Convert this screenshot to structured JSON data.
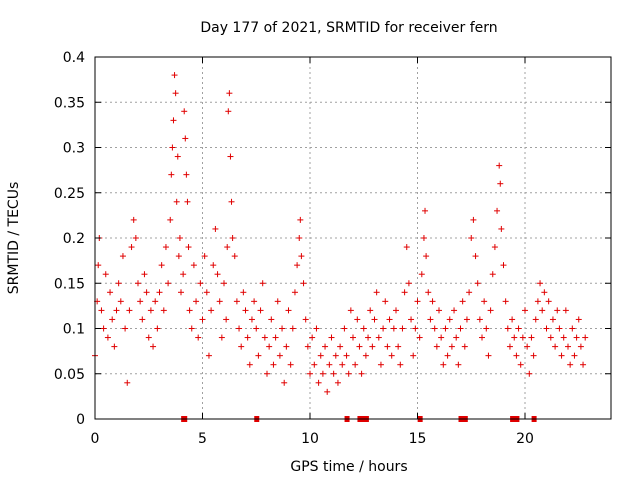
{
  "chart_data": {
    "type": "scatter",
    "title": "Day 177 of 2021, SRMTID for receiver fern",
    "xlabel": "GPS time / hours",
    "ylabel": "SRMTID / TECUs",
    "xlim": [
      0,
      24
    ],
    "ylim": [
      0,
      0.4
    ],
    "grid": true,
    "x_ticks": [
      0,
      5,
      10,
      15,
      20
    ],
    "x_tick_labels": [
      "0",
      "5",
      "10",
      "15",
      "20"
    ],
    "y_ticks": [
      0,
      0.05,
      0.1,
      0.15,
      0.2,
      0.25,
      0.3,
      0.35,
      0.4
    ],
    "y_tick_labels": [
      "0",
      "0.05",
      "0.1",
      "0.15",
      "0.2",
      "0.25",
      "0.3",
      "0.35",
      "0.4"
    ],
    "marker": "+",
    "color": "#e00000",
    "series": [
      {
        "name": "SRMTID",
        "points": [
          [
            0.0,
            0.07
          ],
          [
            0.1,
            0.13
          ],
          [
            0.15,
            0.17
          ],
          [
            0.2,
            0.2
          ],
          [
            0.3,
            0.12
          ],
          [
            0.4,
            0.1
          ],
          [
            0.5,
            0.16
          ],
          [
            0.6,
            0.09
          ],
          [
            0.7,
            0.14
          ],
          [
            0.8,
            0.11
          ],
          [
            0.9,
            0.08
          ],
          [
            1.0,
            0.12
          ],
          [
            1.1,
            0.15
          ],
          [
            1.2,
            0.13
          ],
          [
            1.3,
            0.18
          ],
          [
            1.4,
            0.1
          ],
          [
            1.5,
            0.04
          ],
          [
            1.6,
            0.12
          ],
          [
            1.7,
            0.19
          ],
          [
            1.8,
            0.22
          ],
          [
            1.9,
            0.2
          ],
          [
            2.0,
            0.15
          ],
          [
            2.1,
            0.13
          ],
          [
            2.2,
            0.11
          ],
          [
            2.3,
            0.16
          ],
          [
            2.4,
            0.14
          ],
          [
            2.5,
            0.09
          ],
          [
            2.6,
            0.12
          ],
          [
            2.7,
            0.08
          ],
          [
            2.8,
            0.13
          ],
          [
            2.9,
            0.1
          ],
          [
            3.0,
            0.14
          ],
          [
            3.1,
            0.17
          ],
          [
            3.2,
            0.12
          ],
          [
            3.3,
            0.19
          ],
          [
            3.4,
            0.15
          ],
          [
            3.5,
            0.22
          ],
          [
            3.55,
            0.27
          ],
          [
            3.6,
            0.3
          ],
          [
            3.65,
            0.33
          ],
          [
            3.7,
            0.38
          ],
          [
            3.75,
            0.36
          ],
          [
            3.8,
            0.24
          ],
          [
            3.85,
            0.29
          ],
          [
            3.9,
            0.18
          ],
          [
            3.95,
            0.2
          ],
          [
            4.0,
            0.14
          ],
          [
            4.1,
            0.16
          ],
          [
            4.15,
            0.34
          ],
          [
            4.2,
            0.31
          ],
          [
            4.25,
            0.27
          ],
          [
            4.3,
            0.24
          ],
          [
            4.35,
            0.19
          ],
          [
            4.4,
            0.12
          ],
          [
            4.5,
            0.1
          ],
          [
            4.6,
            0.17
          ],
          [
            4.7,
            0.13
          ],
          [
            4.8,
            0.09
          ],
          [
            4.9,
            0.15
          ],
          [
            5.0,
            0.11
          ],
          [
            5.1,
            0.18
          ],
          [
            5.2,
            0.14
          ],
          [
            5.3,
            0.07
          ],
          [
            5.4,
            0.12
          ],
          [
            5.5,
            0.17
          ],
          [
            5.6,
            0.21
          ],
          [
            5.7,
            0.16
          ],
          [
            5.8,
            0.13
          ],
          [
            5.9,
            0.09
          ],
          [
            6.0,
            0.15
          ],
          [
            6.1,
            0.11
          ],
          [
            6.15,
            0.19
          ],
          [
            6.2,
            0.34
          ],
          [
            6.25,
            0.36
          ],
          [
            6.3,
            0.29
          ],
          [
            6.35,
            0.24
          ],
          [
            6.4,
            0.2
          ],
          [
            6.5,
            0.18
          ],
          [
            6.6,
            0.13
          ],
          [
            6.7,
            0.1
          ],
          [
            6.8,
            0.08
          ],
          [
            6.9,
            0.14
          ],
          [
            7.0,
            0.12
          ],
          [
            7.1,
            0.09
          ],
          [
            7.2,
            0.06
          ],
          [
            7.3,
            0.11
          ],
          [
            7.4,
            0.13
          ],
          [
            7.5,
            0.1
          ],
          [
            7.6,
            0.07
          ],
          [
            7.7,
            0.12
          ],
          [
            7.8,
            0.15
          ],
          [
            7.9,
            0.09
          ],
          [
            8.0,
            0.05
          ],
          [
            8.1,
            0.08
          ],
          [
            8.2,
            0.11
          ],
          [
            8.3,
            0.06
          ],
          [
            8.4,
            0.09
          ],
          [
            8.5,
            0.13
          ],
          [
            8.6,
            0.07
          ],
          [
            8.7,
            0.1
          ],
          [
            8.8,
            0.04
          ],
          [
            8.9,
            0.08
          ],
          [
            9.0,
            0.12
          ],
          [
            9.1,
            0.06
          ],
          [
            9.2,
            0.1
          ],
          [
            9.3,
            0.14
          ],
          [
            9.4,
            0.17
          ],
          [
            9.5,
            0.2
          ],
          [
            9.55,
            0.22
          ],
          [
            9.6,
            0.18
          ],
          [
            9.7,
            0.15
          ],
          [
            9.8,
            0.11
          ],
          [
            9.9,
            0.08
          ],
          [
            10.0,
            0.05
          ],
          [
            10.1,
            0.09
          ],
          [
            10.2,
            0.06
          ],
          [
            10.3,
            0.1
          ],
          [
            10.4,
            0.04
          ],
          [
            10.5,
            0.07
          ],
          [
            10.6,
            0.05
          ],
          [
            10.7,
            0.08
          ],
          [
            10.8,
            0.03
          ],
          [
            10.9,
            0.06
          ],
          [
            11.0,
            0.09
          ],
          [
            11.1,
            0.05
          ],
          [
            11.2,
            0.07
          ],
          [
            11.3,
            0.04
          ],
          [
            11.4,
            0.08
          ],
          [
            11.5,
            0.06
          ],
          [
            11.6,
            0.1
          ],
          [
            11.7,
            0.07
          ],
          [
            11.8,
            0.05
          ],
          [
            11.9,
            0.12
          ],
          [
            12.0,
            0.09
          ],
          [
            12.1,
            0.06
          ],
          [
            12.2,
            0.11
          ],
          [
            12.3,
            0.08
          ],
          [
            12.4,
            0.05
          ],
          [
            12.5,
            0.1
          ],
          [
            12.6,
            0.07
          ],
          [
            12.7,
            0.09
          ],
          [
            12.8,
            0.12
          ],
          [
            12.9,
            0.08
          ],
          [
            13.0,
            0.11
          ],
          [
            13.1,
            0.14
          ],
          [
            13.2,
            0.09
          ],
          [
            13.3,
            0.06
          ],
          [
            13.4,
            0.1
          ],
          [
            13.5,
            0.13
          ],
          [
            13.6,
            0.08
          ],
          [
            13.7,
            0.11
          ],
          [
            13.8,
            0.07
          ],
          [
            13.9,
            0.1
          ],
          [
            14.0,
            0.12
          ],
          [
            14.1,
            0.08
          ],
          [
            14.2,
            0.06
          ],
          [
            14.3,
            0.1
          ],
          [
            14.4,
            0.14
          ],
          [
            14.5,
            0.19
          ],
          [
            14.6,
            0.15
          ],
          [
            14.7,
            0.11
          ],
          [
            14.8,
            0.07
          ],
          [
            14.9,
            0.1
          ],
          [
            15.0,
            0.13
          ],
          [
            15.1,
            0.09
          ],
          [
            15.2,
            0.16
          ],
          [
            15.3,
            0.2
          ],
          [
            15.35,
            0.23
          ],
          [
            15.4,
            0.18
          ],
          [
            15.5,
            0.14
          ],
          [
            15.6,
            0.11
          ],
          [
            15.7,
            0.13
          ],
          [
            15.8,
            0.1
          ],
          [
            15.9,
            0.08
          ],
          [
            16.0,
            0.12
          ],
          [
            16.1,
            0.09
          ],
          [
            16.2,
            0.06
          ],
          [
            16.3,
            0.1
          ],
          [
            16.4,
            0.07
          ],
          [
            16.5,
            0.11
          ],
          [
            16.6,
            0.08
          ],
          [
            16.7,
            0.12
          ],
          [
            16.8,
            0.09
          ],
          [
            16.9,
            0.06
          ],
          [
            17.0,
            0.1
          ],
          [
            17.1,
            0.13
          ],
          [
            17.2,
            0.08
          ],
          [
            17.3,
            0.11
          ],
          [
            17.4,
            0.14
          ],
          [
            17.5,
            0.2
          ],
          [
            17.6,
            0.22
          ],
          [
            17.7,
            0.18
          ],
          [
            17.8,
            0.15
          ],
          [
            17.9,
            0.11
          ],
          [
            18.0,
            0.09
          ],
          [
            18.1,
            0.13
          ],
          [
            18.2,
            0.1
          ],
          [
            18.3,
            0.07
          ],
          [
            18.4,
            0.12
          ],
          [
            18.5,
            0.16
          ],
          [
            18.6,
            0.19
          ],
          [
            18.7,
            0.23
          ],
          [
            18.8,
            0.28
          ],
          [
            18.85,
            0.26
          ],
          [
            18.9,
            0.21
          ],
          [
            19.0,
            0.17
          ],
          [
            19.1,
            0.13
          ],
          [
            19.2,
            0.1
          ],
          [
            19.3,
            0.08
          ],
          [
            19.4,
            0.11
          ],
          [
            19.5,
            0.09
          ],
          [
            19.6,
            0.07
          ],
          [
            19.7,
            0.1
          ],
          [
            19.8,
            0.06
          ],
          [
            19.9,
            0.09
          ],
          [
            20.0,
            0.12
          ],
          [
            20.1,
            0.08
          ],
          [
            20.2,
            0.05
          ],
          [
            20.3,
            0.09
          ],
          [
            20.4,
            0.07
          ],
          [
            20.5,
            0.11
          ],
          [
            20.6,
            0.13
          ],
          [
            20.7,
            0.15
          ],
          [
            20.8,
            0.12
          ],
          [
            20.9,
            0.14
          ],
          [
            21.0,
            0.1
          ],
          [
            21.1,
            0.13
          ],
          [
            21.2,
            0.09
          ],
          [
            21.3,
            0.11
          ],
          [
            21.4,
            0.08
          ],
          [
            21.5,
            0.12
          ],
          [
            21.6,
            0.1
          ],
          [
            21.7,
            0.07
          ],
          [
            21.8,
            0.09
          ],
          [
            21.9,
            0.12
          ],
          [
            22.0,
            0.08
          ],
          [
            22.1,
            0.06
          ],
          [
            22.2,
            0.1
          ],
          [
            22.3,
            0.07
          ],
          [
            22.4,
            0.09
          ],
          [
            22.5,
            0.11
          ],
          [
            22.6,
            0.08
          ],
          [
            22.7,
            0.06
          ],
          [
            22.8,
            0.09
          ]
        ]
      }
    ],
    "baseline_markers": [
      4.1,
      4.15,
      7.5,
      11.7,
      12.3,
      12.4,
      12.5,
      12.6,
      15.1,
      17.0,
      17.1,
      17.2,
      19.4,
      19.6,
      20.4
    ]
  }
}
